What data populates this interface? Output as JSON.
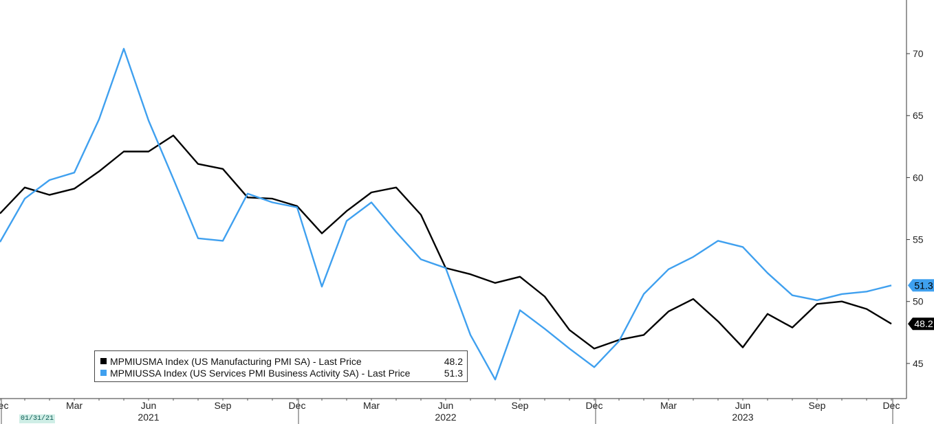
{
  "chart_data": {
    "type": "line",
    "x": [
      "2020-12",
      "2021-01",
      "2021-02",
      "2021-03",
      "2021-04",
      "2021-05",
      "2021-06",
      "2021-07",
      "2021-08",
      "2021-09",
      "2021-10",
      "2021-11",
      "2021-12",
      "2022-01",
      "2022-02",
      "2022-03",
      "2022-04",
      "2022-05",
      "2022-06",
      "2022-07",
      "2022-08",
      "2022-09",
      "2022-10",
      "2022-11",
      "2022-12",
      "2023-01",
      "2023-02",
      "2023-03",
      "2023-04",
      "2023-05",
      "2023-06",
      "2023-07",
      "2023-08",
      "2023-09",
      "2023-10",
      "2023-11",
      "2023-12"
    ],
    "x_tick_labels": [
      "Dec",
      "Mar",
      "Jun",
      "Sep",
      "Dec",
      "Mar",
      "Jun",
      "Sep",
      "Dec",
      "Mar",
      "Jun",
      "Sep",
      "Dec"
    ],
    "year_labels": [
      "2021",
      "2022",
      "2023"
    ],
    "series": [
      {
        "name": "MPMIUSMA Index (US Manufacturing PMI SA) - Last Price",
        "color": "#000000",
        "last_value": "48.2",
        "values": [
          57.1,
          59.2,
          58.6,
          59.1,
          60.5,
          62.1,
          62.1,
          63.4,
          61.1,
          60.7,
          58.4,
          58.3,
          57.7,
          55.5,
          57.3,
          58.8,
          59.2,
          57.0,
          52.7,
          52.2,
          51.5,
          52.0,
          50.4,
          47.7,
          46.2,
          46.9,
          47.3,
          49.2,
          50.2,
          48.4,
          46.3,
          49.0,
          47.9,
          49.8,
          50.0,
          49.4,
          48.2
        ]
      },
      {
        "name": "MPMIUSSA Index (US Services PMI Business Activity SA) - Last Price",
        "color": "#3fa0ef",
        "last_value": "51.3",
        "values": [
          54.8,
          58.3,
          59.8,
          60.4,
          64.7,
          70.4,
          64.6,
          59.9,
          55.1,
          54.9,
          58.7,
          58.0,
          57.6,
          51.2,
          56.5,
          58.0,
          55.6,
          53.4,
          52.7,
          47.3,
          43.7,
          49.3,
          47.8,
          46.2,
          44.7,
          46.8,
          50.6,
          52.6,
          53.6,
          54.9,
          54.4,
          52.3,
          50.5,
          50.1,
          50.6,
          50.8,
          51.3
        ]
      }
    ],
    "ylim": [
      42,
      72
    ],
    "y_ticks": [
      45,
      50,
      55,
      60,
      65,
      70
    ],
    "title": "",
    "xlabel": "",
    "ylabel": "",
    "grid": false,
    "legend_position": "bottom-left"
  },
  "date_tag": "01/31/21"
}
